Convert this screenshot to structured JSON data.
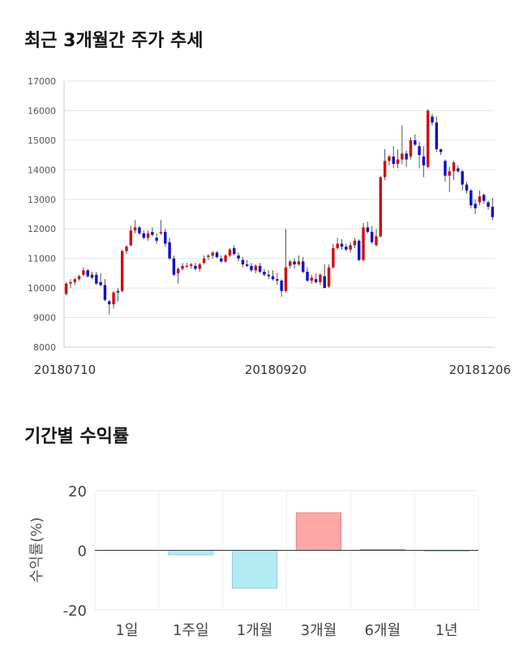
{
  "sections": {
    "price_title": "최근 3개월간 주가 추세",
    "return_title": "기간별 수익률"
  },
  "chart_data": [
    {
      "type": "candlestick",
      "title": "최근 3개월간 주가 추세",
      "ylim": [
        8000,
        17000
      ],
      "yticks": [
        8000,
        9000,
        10000,
        11000,
        12000,
        13000,
        14000,
        15000,
        16000,
        17000
      ],
      "xtick_labels": [
        "20180710",
        "20180920",
        "20181206"
      ],
      "grid": true,
      "colors": {
        "up": "#d10f0f",
        "down": "#1111c9",
        "wick": "#555555"
      },
      "ohlc": [
        [
          9800,
          10200,
          9750,
          10150
        ],
        [
          10150,
          10300,
          10000,
          10200
        ],
        [
          10200,
          10350,
          10100,
          10300
        ],
        [
          10300,
          10450,
          10250,
          10400
        ],
        [
          10450,
          10700,
          10400,
          10600
        ],
        [
          10600,
          10650,
          10350,
          10400
        ],
        [
          10450,
          10550,
          10300,
          10350
        ],
        [
          10450,
          10550,
          10100,
          10150
        ],
        [
          10200,
          10500,
          10050,
          10100
        ],
        [
          10100,
          10300,
          9550,
          9600
        ],
        [
          9550,
          9600,
          9100,
          9450
        ],
        [
          9450,
          9900,
          9300,
          9850
        ],
        [
          9900,
          10000,
          9550,
          9850
        ],
        [
          9900,
          11300,
          9850,
          11250
        ],
        [
          11250,
          11450,
          11150,
          11400
        ],
        [
          11450,
          12100,
          11400,
          11950
        ],
        [
          11950,
          12300,
          11850,
          12050
        ],
        [
          12050,
          12100,
          11800,
          11850
        ],
        [
          11850,
          11950,
          11650,
          11700
        ],
        [
          11700,
          11950,
          11600,
          11850
        ],
        [
          11900,
          12050,
          11750,
          11800
        ],
        [
          11700,
          11850,
          11500,
          11600
        ],
        [
          11850,
          12300,
          11800,
          11900
        ],
        [
          11900,
          12000,
          11400,
          11500
        ],
        [
          11550,
          11700,
          10950,
          11000
        ],
        [
          11000,
          11100,
          10400,
          10450
        ],
        [
          10500,
          10700,
          10150,
          10650
        ],
        [
          10650,
          10850,
          10600,
          10750
        ],
        [
          10750,
          10850,
          10700,
          10750
        ],
        [
          10750,
          10850,
          10650,
          10800
        ],
        [
          10750,
          10850,
          10600,
          10650
        ],
        [
          10650,
          10850,
          10550,
          10800
        ],
        [
          10850,
          11100,
          10800,
          11000
        ],
        [
          11050,
          11150,
          10950,
          11100
        ],
        [
          11100,
          11250,
          11000,
          11200
        ],
        [
          11200,
          11250,
          11000,
          11050
        ],
        [
          11000,
          11100,
          10850,
          10900
        ],
        [
          10900,
          11150,
          10850,
          11100
        ],
        [
          11100,
          11350,
          11050,
          11300
        ],
        [
          11350,
          11450,
          11100,
          11150
        ],
        [
          11100,
          11200,
          10900,
          11000
        ],
        [
          10950,
          11050,
          10700,
          10800
        ],
        [
          10800,
          10950,
          10700,
          10750
        ],
        [
          10750,
          10850,
          10550,
          10600
        ],
        [
          10600,
          10800,
          10500,
          10750
        ],
        [
          10750,
          10850,
          10500,
          10550
        ],
        [
          10550,
          10650,
          10400,
          10450
        ],
        [
          10450,
          10600,
          10300,
          10400
        ],
        [
          10400,
          10600,
          10250,
          10300
        ],
        [
          10300,
          10500,
          10100,
          10250
        ],
        [
          10250,
          10300,
          9700,
          9900
        ],
        [
          9900,
          12000,
          9850,
          10700
        ],
        [
          10750,
          10950,
          10650,
          10900
        ],
        [
          10900,
          11000,
          10650,
          10800
        ],
        [
          10800,
          11100,
          10750,
          10900
        ],
        [
          10900,
          11050,
          10500,
          10550
        ],
        [
          10550,
          10700,
          10200,
          10250
        ],
        [
          10250,
          10450,
          10150,
          10350
        ],
        [
          10300,
          10500,
          10150,
          10200
        ],
        [
          10200,
          10500,
          10100,
          10450
        ],
        [
          10400,
          10800,
          10050,
          10000
        ],
        [
          10050,
          10800,
          10000,
          10700
        ],
        [
          10700,
          11500,
          10650,
          11350
        ],
        [
          11350,
          11700,
          11300,
          11500
        ],
        [
          11500,
          11650,
          11300,
          11400
        ],
        [
          11400,
          11500,
          11250,
          11300
        ],
        [
          11300,
          11550,
          11200,
          11450
        ],
        [
          11450,
          11700,
          11350,
          11600
        ],
        [
          11600,
          11650,
          10900,
          10950
        ],
        [
          10950,
          12200,
          10900,
          12050
        ],
        [
          12050,
          12250,
          11850,
          11900
        ],
        [
          11900,
          12100,
          11500,
          11550
        ],
        [
          11450,
          12000,
          11400,
          11750
        ],
        [
          11750,
          13800,
          11700,
          13750
        ],
        [
          13750,
          14700,
          13650,
          14300
        ],
        [
          14300,
          14500,
          14150,
          14450
        ],
        [
          14450,
          14800,
          14050,
          14200
        ],
        [
          14200,
          14700,
          14050,
          14350
        ],
        [
          14350,
          15500,
          14200,
          14550
        ],
        [
          14550,
          14650,
          14100,
          14350
        ],
        [
          14450,
          15100,
          14350,
          15000
        ],
        [
          15000,
          15200,
          14800,
          14850
        ],
        [
          14800,
          14950,
          14050,
          14500
        ],
        [
          14450,
          14800,
          13750,
          14150
        ],
        [
          14100,
          16050,
          14050,
          16000
        ],
        [
          15800,
          15900,
          15500,
          15600
        ],
        [
          15600,
          15800,
          14600,
          14700
        ],
        [
          14700,
          14700,
          14500,
          14600
        ],
        [
          14300,
          14350,
          13600,
          13800
        ],
        [
          13800,
          14100,
          13250,
          13950
        ],
        [
          13950,
          14300,
          13650,
          14250
        ],
        [
          14050,
          14150,
          13900,
          13950
        ],
        [
          13950,
          14000,
          13300,
          13500
        ],
        [
          13500,
          13600,
          13200,
          13300
        ],
        [
          13300,
          13350,
          12700,
          12800
        ],
        [
          12850,
          13000,
          12500,
          12700
        ],
        [
          12900,
          13300,
          12800,
          13100
        ],
        [
          13150,
          13200,
          12850,
          12950
        ],
        [
          12900,
          12950,
          12650,
          12750
        ],
        [
          12750,
          13050,
          12300,
          12400
        ]
      ]
    },
    {
      "type": "bar",
      "title": "기간별 수익률",
      "ylabel": "수익률(%)",
      "categories": [
        "1일",
        "1주일",
        "1개월",
        "3개월",
        "6개월",
        "1년"
      ],
      "values": [
        0.0,
        -1.5,
        -12.7,
        12.6,
        0.3,
        -0.3
      ],
      "ylim": [
        -20,
        20
      ],
      "yticks": [
        -20,
        0,
        20
      ],
      "grid": true,
      "colors": {
        "positive": "#ffa7a7",
        "positive_stroke": "#e38a8a",
        "negative": "#b3eaf4",
        "negative_stroke": "#8dcfdc"
      }
    }
  ]
}
